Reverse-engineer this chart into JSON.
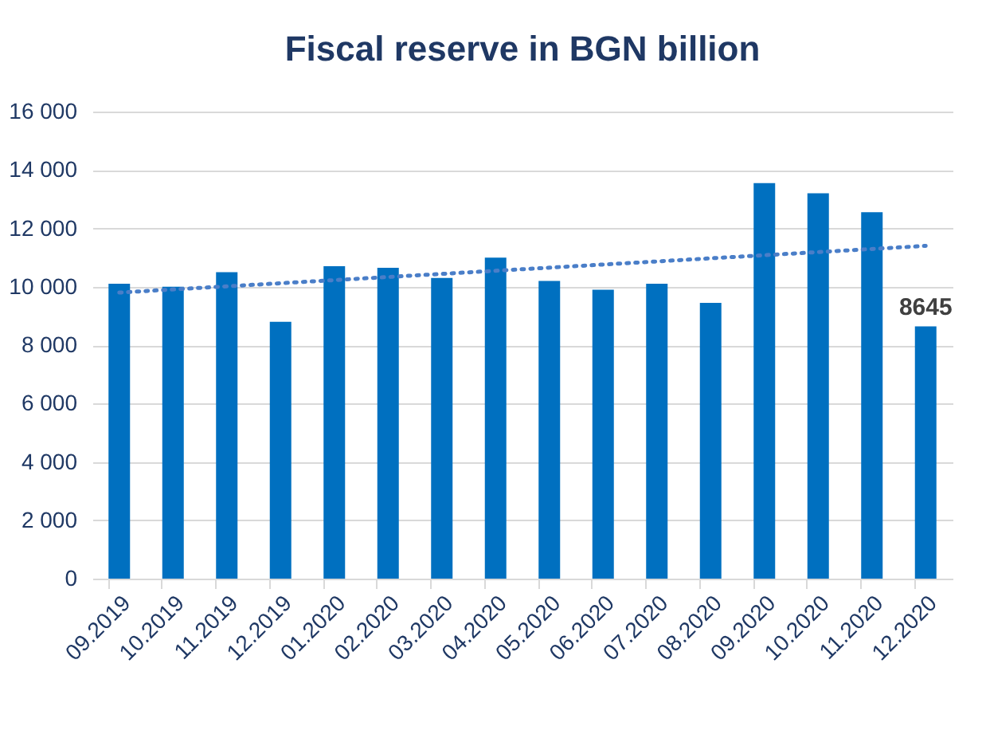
{
  "chart_data": {
    "type": "bar",
    "title": "Fiscal reserve in BGN billion",
    "categories": [
      "09.2019",
      "10.2019",
      "11.2019",
      "12.2019",
      "01.2020",
      "02.2020",
      "03.2020",
      "04.2020",
      "05.2020",
      "06.2020",
      "07.2020",
      "08.2020",
      "09.2020",
      "10.2020",
      "11.2020",
      "12.2020"
    ],
    "series": [
      {
        "color": "#0070c0",
        "values": [
          10100,
          10000,
          10500,
          8800,
          10700,
          10650,
          10300,
          11000,
          10200,
          9900,
          10100,
          9450,
          13550,
          13200,
          12550,
          8645
        ],
        "value_labels": [
          null,
          null,
          null,
          null,
          null,
          null,
          null,
          null,
          null,
          null,
          null,
          null,
          null,
          null,
          null,
          "8645"
        ]
      },
      {
        "type": "line",
        "color": "#4a7ec8",
        "line_style": "dotted",
        "x": [
          "09.2019",
          "12.2020"
        ],
        "values": [
          9800,
          11400
        ]
      }
    ],
    "ylim": [
      0,
      16000
    ],
    "yticks": [
      {
        "value": 0,
        "label": "0"
      },
      {
        "value": 2000,
        "label": "2 000"
      },
      {
        "value": 4000,
        "label": "4 000"
      },
      {
        "value": 6000,
        "label": "6 000"
      },
      {
        "value": 8000,
        "label": "8 000"
      },
      {
        "value": 10000,
        "label": "10 000"
      },
      {
        "value": 12000,
        "label": "12 000"
      },
      {
        "value": 14000,
        "label": "14 000"
      },
      {
        "value": 16000,
        "label": "16 000"
      }
    ],
    "grid": "y"
  }
}
